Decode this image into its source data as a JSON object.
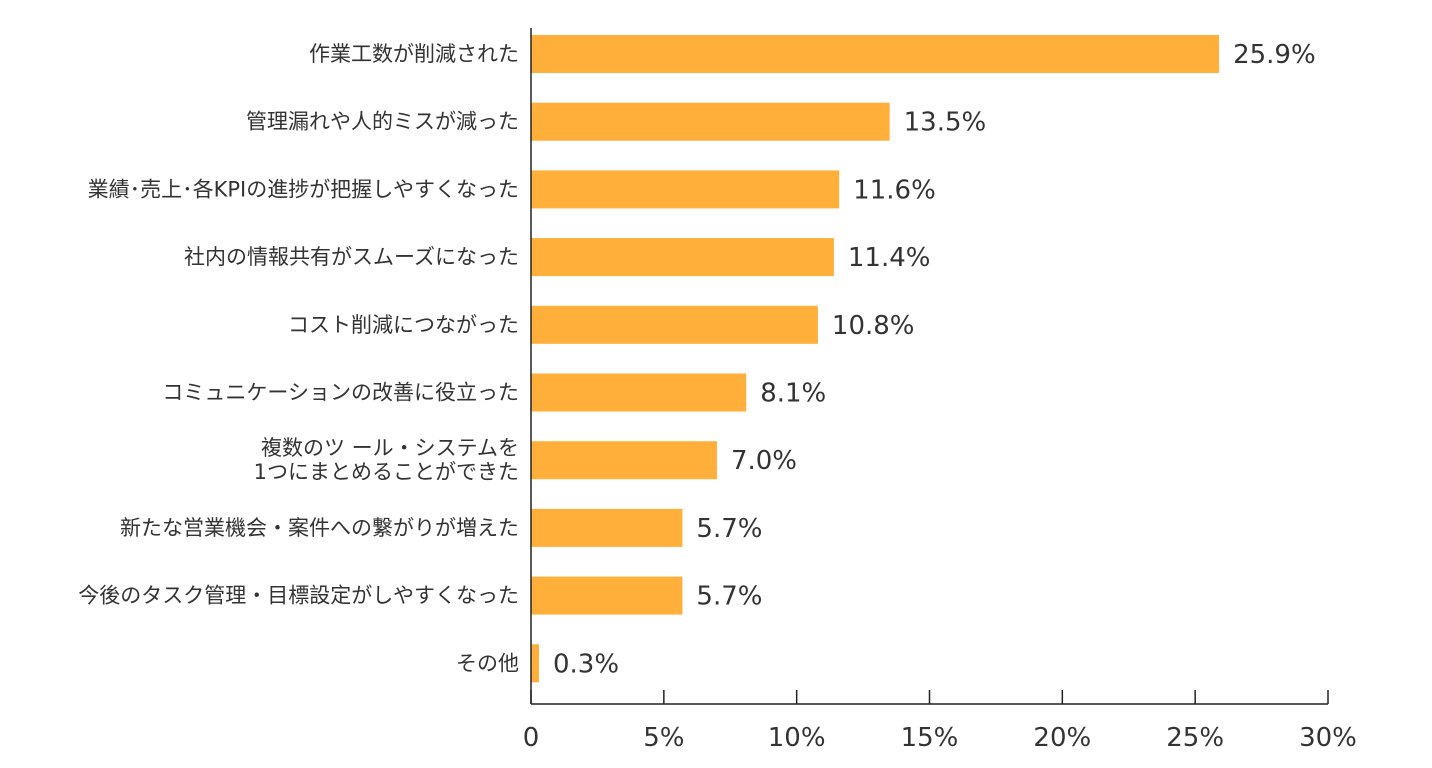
{
  "chart_data": {
    "type": "bar",
    "orientation": "horizontal",
    "categories": [
      [
        "作業工数が削減された"
      ],
      [
        "管理漏れや人的ミスが減った"
      ],
      [
        "業績･売上･各KPIの進捗が把握しやすくなった"
      ],
      [
        "社内の情報共有がスムーズになった"
      ],
      [
        "コスト削減につながった"
      ],
      [
        "コミュニケーションの改善に役立った"
      ],
      [
        "複数のツ ール・システムを",
        "1つにまとめることができた"
      ],
      [
        "新たな営業機会・案件への繋がりが増えた"
      ],
      [
        "今後のタスク管理・目標設定がしやすくなった"
      ],
      [
        "その他"
      ]
    ],
    "values": [
      25.9,
      13.5,
      11.6,
      11.4,
      10.8,
      8.1,
      7.0,
      5.7,
      5.7,
      0.3
    ],
    "value_labels": [
      "25.9%",
      "13.5%",
      "11.6%",
      "11.4%",
      "10.8%",
      "8.1%",
      "7.0%",
      "5.7%",
      "5.7%",
      "0.3%"
    ],
    "xlim": [
      0,
      30
    ],
    "x_ticks": [
      0,
      5,
      10,
      15,
      20,
      25,
      30
    ],
    "x_tick_labels": [
      "0",
      "5%",
      "10%",
      "15%",
      "20%",
      "25%",
      "30%"
    ],
    "title": "",
    "xlabel": "",
    "ylabel": "",
    "grid": false,
    "legend": "none",
    "bar_color": "#FFAF3A",
    "axis_color": "#222222",
    "text_color": "#333333"
  }
}
